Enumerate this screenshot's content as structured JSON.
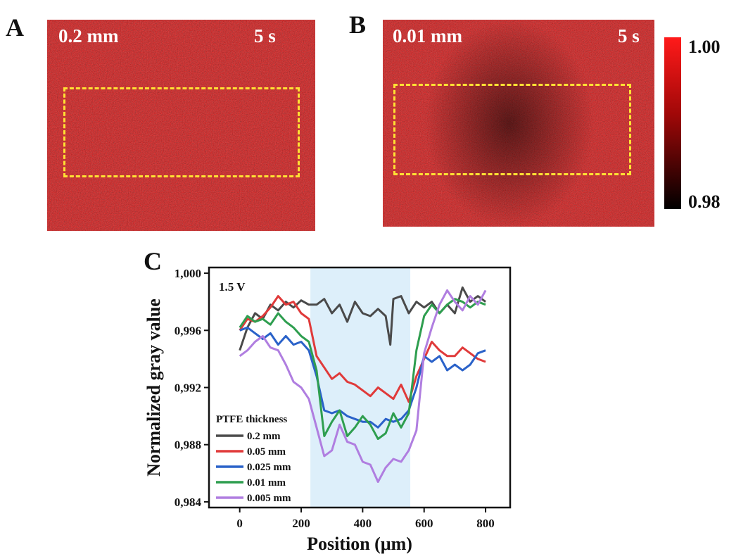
{
  "panels": {
    "A": {
      "letter": "A",
      "thickness_label": "0.2 mm",
      "time_label": "5 s"
    },
    "B": {
      "letter": "B",
      "thickness_label": "0.01 mm",
      "time_label": "5 s"
    },
    "C": {
      "letter": "C"
    }
  },
  "colorbar": {
    "max_label": "1.00",
    "min_label": "0.98",
    "color_max": "#ff1a1a",
    "color_min": "#000000"
  },
  "colors": {
    "heat_base": "#b20d0d",
    "roi_border": "#ffe234",
    "highlight_band": "#ddeffa"
  },
  "chart_data": {
    "type": "line",
    "xlabel": "Position (μm)",
    "ylabel": "Normalized gray value",
    "annotation": "1.5 V",
    "xlim": [
      -100,
      880
    ],
    "ylim": [
      0.9836,
      1.0004
    ],
    "xticks": [
      0,
      200,
      400,
      600,
      800
    ],
    "yticks": [
      {
        "value": 0.984,
        "label": "0,984"
      },
      {
        "value": 0.988,
        "label": "0,988"
      },
      {
        "value": 0.992,
        "label": "0,992"
      },
      {
        "value": 0.996,
        "label": "0,996"
      },
      {
        "value": 1.0,
        "label": "1,000"
      }
    ],
    "highlight_region": [
      230,
      555
    ],
    "legend_title": "PTFE thickness",
    "legend_position": "bottom-left",
    "series": [
      {
        "name": "0.2 mm",
        "color": "#4a4a4a",
        "x": [
          0,
          25,
          50,
          75,
          100,
          125,
          150,
          175,
          200,
          225,
          250,
          275,
          300,
          325,
          350,
          375,
          400,
          425,
          450,
          475,
          490,
          500,
          525,
          550,
          575,
          600,
          625,
          650,
          675,
          700,
          725,
          750,
          775,
          800
        ],
        "y": [
          0.9946,
          0.9962,
          0.9972,
          0.9968,
          0.9978,
          0.9974,
          0.998,
          0.9976,
          0.9981,
          0.9978,
          0.9978,
          0.9982,
          0.9972,
          0.9978,
          0.9966,
          0.998,
          0.9972,
          0.997,
          0.9975,
          0.997,
          0.995,
          0.9982,
          0.9984,
          0.9972,
          0.998,
          0.9976,
          0.998,
          0.9972,
          0.9978,
          0.9972,
          0.999,
          0.998,
          0.9984,
          0.998
        ]
      },
      {
        "name": "0.05 mm",
        "color": "#e03a3a",
        "x": [
          0,
          25,
          50,
          75,
          100,
          125,
          150,
          175,
          200,
          225,
          250,
          275,
          300,
          325,
          350,
          375,
          400,
          425,
          450,
          475,
          500,
          525,
          550,
          575,
          600,
          625,
          650,
          675,
          700,
          725,
          750,
          775,
          800
        ],
        "y": [
          0.996,
          0.9968,
          0.9966,
          0.997,
          0.9976,
          0.9984,
          0.9978,
          0.998,
          0.9972,
          0.9968,
          0.9942,
          0.9934,
          0.9926,
          0.993,
          0.9924,
          0.9922,
          0.9918,
          0.9914,
          0.992,
          0.9916,
          0.9912,
          0.9922,
          0.991,
          0.9928,
          0.994,
          0.9952,
          0.9946,
          0.9942,
          0.9942,
          0.9948,
          0.9944,
          0.994,
          0.9938
        ]
      },
      {
        "name": "0.025 mm",
        "color": "#2a62c9",
        "x": [
          0,
          25,
          50,
          75,
          100,
          125,
          150,
          175,
          200,
          225,
          250,
          275,
          300,
          325,
          350,
          375,
          400,
          425,
          450,
          475,
          500,
          525,
          550,
          575,
          600,
          625,
          650,
          675,
          700,
          725,
          750,
          775,
          800
        ],
        "y": [
          0.996,
          0.9962,
          0.9958,
          0.9954,
          0.9958,
          0.995,
          0.9956,
          0.995,
          0.9952,
          0.9946,
          0.9928,
          0.9904,
          0.9902,
          0.9904,
          0.99,
          0.9898,
          0.9896,
          0.9896,
          0.9892,
          0.9898,
          0.9896,
          0.9898,
          0.9904,
          0.992,
          0.9942,
          0.9938,
          0.9942,
          0.9932,
          0.9936,
          0.9932,
          0.9936,
          0.9944,
          0.9946
        ]
      },
      {
        "name": "0.01 mm",
        "color": "#2e9e4f",
        "x": [
          0,
          25,
          50,
          75,
          100,
          125,
          150,
          175,
          200,
          225,
          250,
          275,
          300,
          325,
          350,
          375,
          400,
          425,
          450,
          475,
          500,
          525,
          550,
          575,
          600,
          625,
          650,
          675,
          700,
          725,
          750,
          775,
          800
        ],
        "y": [
          0.9962,
          0.997,
          0.9966,
          0.9968,
          0.9964,
          0.9972,
          0.9966,
          0.9962,
          0.9956,
          0.9952,
          0.9932,
          0.9886,
          0.9896,
          0.9904,
          0.9886,
          0.9892,
          0.99,
          0.9894,
          0.9884,
          0.9888,
          0.9902,
          0.9892,
          0.9902,
          0.9946,
          0.997,
          0.9978,
          0.9972,
          0.9978,
          0.9982,
          0.998,
          0.9976,
          0.998,
          0.9978
        ]
      },
      {
        "name": "0.005 mm",
        "color": "#b07ee0",
        "x": [
          0,
          25,
          50,
          75,
          100,
          125,
          150,
          175,
          200,
          225,
          250,
          275,
          300,
          325,
          350,
          375,
          400,
          425,
          450,
          475,
          500,
          525,
          550,
          575,
          600,
          625,
          650,
          675,
          700,
          725,
          750,
          775,
          800
        ],
        "y": [
          0.9942,
          0.9946,
          0.9952,
          0.9956,
          0.9948,
          0.9946,
          0.9936,
          0.9924,
          0.992,
          0.9912,
          0.9892,
          0.9872,
          0.9876,
          0.9894,
          0.9882,
          0.988,
          0.9868,
          0.9866,
          0.9854,
          0.9864,
          0.987,
          0.9868,
          0.9876,
          0.989,
          0.9944,
          0.9962,
          0.9978,
          0.9988,
          0.998,
          0.9974,
          0.9984,
          0.9978,
          0.9988
        ]
      }
    ]
  }
}
